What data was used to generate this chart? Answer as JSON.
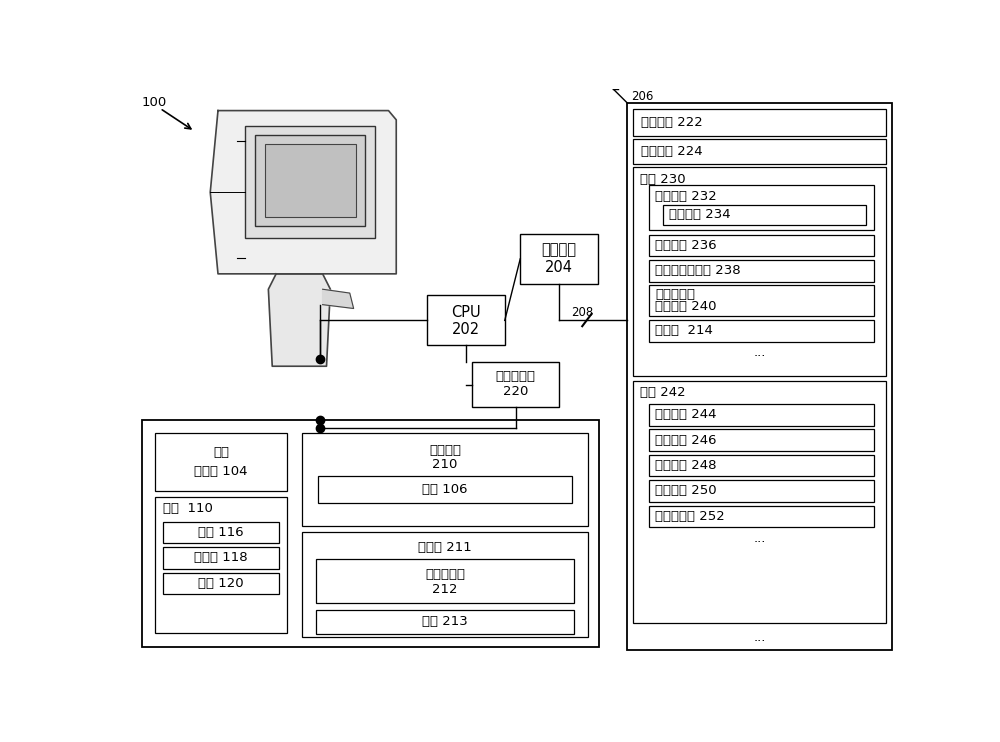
{
  "bg_color": "#ffffff",
  "fig_w": 10.0,
  "fig_h": 7.42,
  "dpi": 100,
  "lw_thin": 0.8,
  "lw_med": 1.0,
  "lw_thick": 1.3,
  "font_size_small": 8.5,
  "font_size_med": 9.5,
  "font_size_large": 10.5,
  "label_100": "100",
  "label_206": "206",
  "label_cpu": "CPU",
  "label_cpu_num": "202",
  "label_ci": "通信接口",
  "label_ci_num": "204",
  "label_wd": "无线电装置",
  "label_wd_num": "220",
  "label_208": "208",
  "label_op": "操作逻辑 222",
  "label_cm": "通信模块 224",
  "label_app": "应用 230",
  "label_lm": "照明模块 232",
  "label_lmode": "照明模式 234",
  "label_dm": "距离模块 236",
  "label_em": "曝光和增益模块 238",
  "label_ip1": "图像获取和",
  "label_ip2": "处理模块 240",
  "label_dec": "解码器  214",
  "label_data": "数据 242",
  "label_imgd": "图像数据 244",
  "label_symd": "符号数据 246",
  "label_devs": "装置设置 248",
  "label_usrs": "用户设置 250",
  "label_sens": "传感器数据 252",
  "label_ds1": "距离",
  "label_ds2": "传感器 104",
  "label_ls": "光源  110",
  "label_remote": "远程 116",
  "label_lowang": "低角度 118",
  "label_fisheye": "穹顶 120",
  "label_inp": "输入接口",
  "label_inp_num": "210",
  "label_btn": "按鈕 106",
  "label_cam": "摄像头 211",
  "label_is1": "图像传感器",
  "label_is2": "212",
  "label_lens": "镜头 213",
  "dots": "..."
}
